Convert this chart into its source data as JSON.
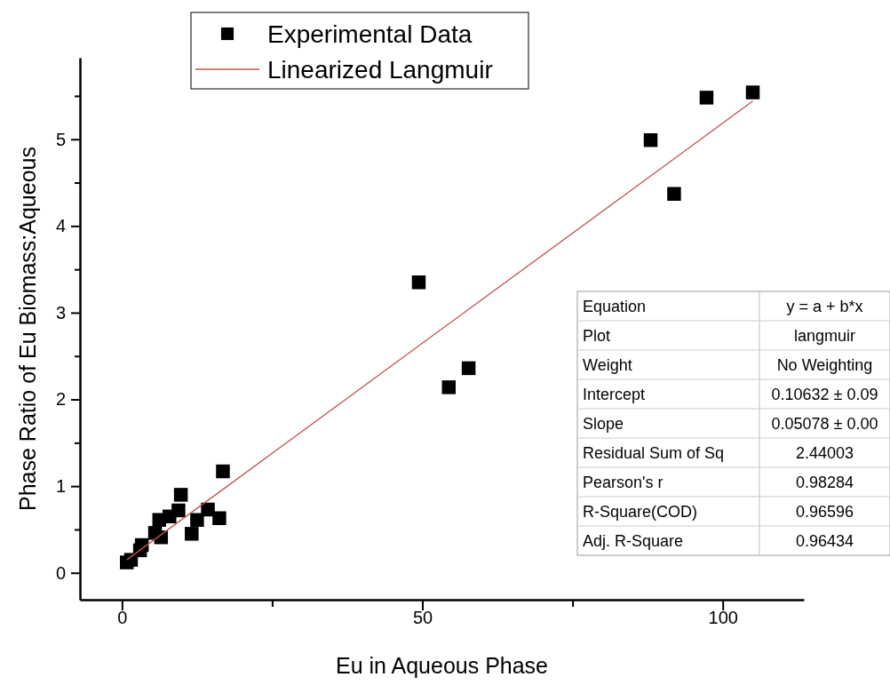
{
  "chart_data": {
    "type": "scatter",
    "xlabel": "Eu in Aqueous Phase",
    "ylabel": "Phase Ratio of Eu Biomass:Aqueous",
    "xlim": [
      -7,
      113.5
    ],
    "ylim": [
      -0.31,
      5.94
    ],
    "xticks": [
      0,
      {
        "value": 25,
        "label": null
      },
      50,
      {
        "value": 75,
        "label": null
      },
      100
    ],
    "yticks": [
      0,
      {
        "value": 0.5,
        "label": null
      },
      1,
      {
        "value": 1.5,
        "label": null
      },
      2,
      {
        "value": 2.5,
        "label": null
      },
      3,
      {
        "value": 3.5,
        "label": null
      },
      4,
      {
        "value": 4.5,
        "label": null
      },
      5,
      {
        "value": 5.5,
        "label": null
      }
    ],
    "grid": false,
    "legend": "top",
    "series": [
      {
        "name": "Experimental Data",
        "marker": "square",
        "color": "#000000",
        "x": [
          0.8,
          1.5,
          3.0,
          3.3,
          5.5,
          6.5,
          6.2,
          7.9,
          9.4,
          9.8,
          11.6,
          12.5,
          14.3,
          16.2,
          16.8,
          49.4,
          54.4,
          57.7,
          88.0,
          91.9,
          97.3,
          105.0
        ],
        "values": [
          0.12,
          0.15,
          0.26,
          0.32,
          0.46,
          0.41,
          0.61,
          0.65,
          0.72,
          0.9,
          0.45,
          0.61,
          0.73,
          0.63,
          1.17,
          3.35,
          2.14,
          2.36,
          4.99,
          4.37,
          5.48,
          5.54
        ]
      },
      {
        "name": "Linearized Langmuir",
        "type": "line",
        "marker": "none",
        "color": "#c0504d",
        "x": [
          0.8,
          105.0
        ],
        "values": [
          0.15,
          5.44
        ]
      }
    ],
    "annotations": [
      "Equation",
      "y = a + b*x",
      "Plot",
      "langmuir",
      "Weight",
      "No Weighting",
      "Intercept",
      "0.10632 ± 0.09",
      "Slope",
      "0.05078 ± 0.00",
      "Residual Sum of Sq",
      "2.44003",
      "Pearson's r",
      "0.98284",
      "R-Square(COD)",
      "0.96596",
      "Adj. R-Square",
      "0.96434"
    ]
  }
}
